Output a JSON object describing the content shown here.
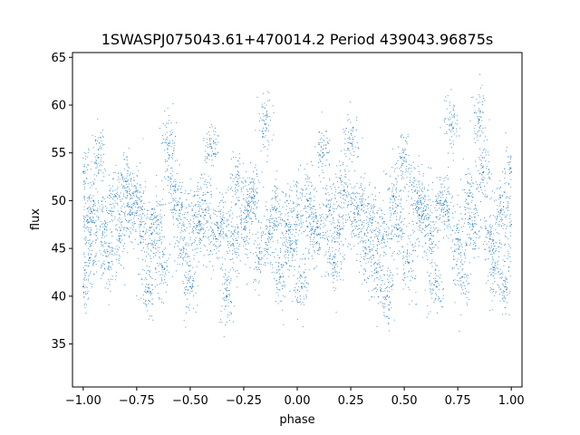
{
  "chart_data": {
    "type": "scatter",
    "title": "1SWASPJ075043.61+470014.2 Period 439043.96875s",
    "xlabel": "phase",
    "ylabel": "flux",
    "xlim": [
      -1.05,
      1.05
    ],
    "ylim": [
      30.5,
      65.5
    ],
    "xticks": [
      -1.0,
      -0.75,
      -0.5,
      -0.25,
      0.0,
      0.25,
      0.5,
      0.75,
      1.0
    ],
    "xtick_labels": [
      "−1.00",
      "−0.75",
      "−0.50",
      "−0.25",
      "0.00",
      "0.25",
      "0.50",
      "0.75",
      "1.00"
    ],
    "yticks": [
      35,
      40,
      45,
      50,
      55,
      60,
      65
    ],
    "ytick_labels": [
      "35",
      "40",
      "45",
      "50",
      "55",
      "60",
      "65"
    ],
    "grid": false,
    "legend": "none",
    "marker_color": "#1f77b4",
    "series": [
      {
        "note_points": "dense point cloud; values sampled at representative phases",
        "x": [
          -1.0,
          -1.0,
          -0.98,
          -0.97,
          -0.95,
          -0.93,
          -0.9,
          -0.88,
          -0.85,
          -0.83,
          -0.8,
          -0.78,
          -0.75,
          -0.73,
          -0.7,
          -0.68,
          -0.65,
          -0.63,
          -0.6,
          -0.58,
          -0.55,
          -0.53,
          -0.5,
          -0.48,
          -0.45,
          -0.43,
          -0.4,
          -0.38,
          -0.35,
          -0.33,
          -0.3,
          -0.28,
          -0.25,
          -0.23,
          -0.2,
          -0.18,
          -0.15,
          -0.13,
          -0.1,
          -0.08,
          -0.05,
          -0.03,
          0.0,
          0.02,
          0.05,
          0.07,
          0.1,
          0.12,
          0.15,
          0.17,
          0.2,
          0.22,
          0.25,
          0.27,
          0.3,
          0.32,
          0.35,
          0.37,
          0.4,
          0.42,
          0.45,
          0.47,
          0.5,
          0.52,
          0.55,
          0.57,
          0.6,
          0.62,
          0.65,
          0.67,
          0.7,
          0.72,
          0.75,
          0.77,
          0.8,
          0.82,
          0.85,
          0.87,
          0.9,
          0.92,
          0.95,
          0.97,
          1.0,
          1.0
        ],
        "y": [
          53.0,
          41.0,
          48.0,
          44.0,
          49.0,
          54.5,
          47.0,
          43.5,
          50.5,
          46.0,
          52.0,
          48.5,
          51.0,
          47.5,
          40.5,
          46.5,
          48.0,
          43.0,
          56.0,
          51.5,
          49.0,
          45.0,
          41.0,
          48.5,
          47.0,
          50.0,
          55.5,
          46.0,
          48.0,
          40.0,
          45.5,
          52.0,
          47.0,
          49.5,
          50.5,
          44.0,
          58.0,
          46.5,
          49.0,
          42.0,
          47.5,
          45.0,
          48.5,
          41.0,
          50.0,
          47.0,
          46.5,
          55.0,
          49.0,
          43.5,
          47.0,
          51.0,
          56.0,
          48.0,
          49.5,
          44.5,
          48.0,
          42.5,
          46.0,
          40.0,
          50.5,
          47.0,
          54.5,
          43.5,
          51.0,
          48.5,
          49.0,
          46.0,
          41.0,
          50.0,
          49.0,
          58.0,
          46.0,
          42.0,
          50.5,
          47.5,
          58.5,
          53.0,
          46.0,
          43.0,
          49.0,
          41.0,
          47.5,
          53.0
        ]
      }
    ]
  }
}
